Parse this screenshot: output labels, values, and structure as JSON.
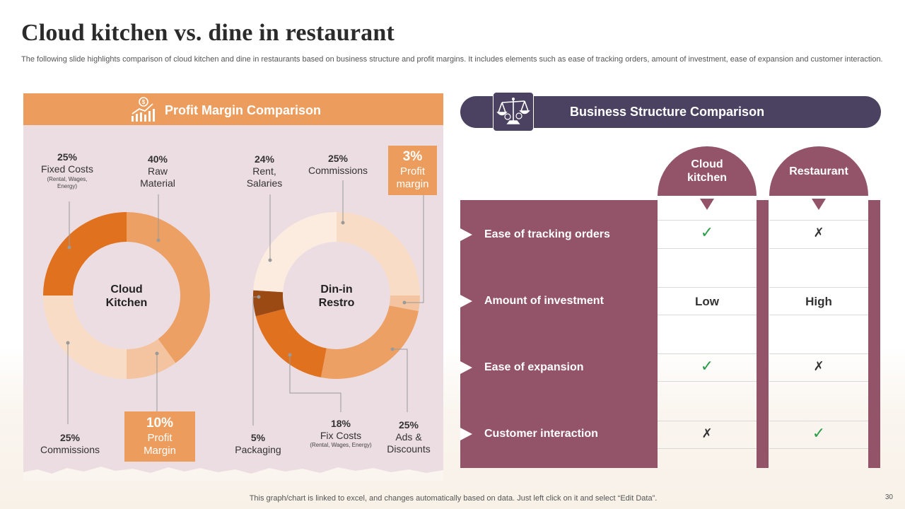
{
  "title": "Cloud kitchen vs. dine in restaurant",
  "subtitle": "The following slide highlights comparison of cloud kitchen and dine in restaurants based on business structure and profit margins. It includes elements such as ease of tracking orders, amount of investment, ease of expansion and customer interaction.",
  "footer_note": "This graph/chart is linked to excel, and changes automatically based on data. Just left click on it and select “Edit Data”.",
  "page_number": "30",
  "profit_panel": {
    "header": "Profit Margin Comparison",
    "icon": "money-chart-icon"
  },
  "business_panel": {
    "header": "Business Structure Comparison",
    "icon": "scales-icon",
    "columns": [
      "Cloud kitchen",
      "Restaurant"
    ],
    "rows": [
      {
        "label": "Ease of tracking orders",
        "cloud": "✓",
        "restaurant": "✗"
      },
      {
        "label": "Amount of investment",
        "cloud": "Low",
        "restaurant": "High"
      },
      {
        "label": "Ease of expansion",
        "cloud": "✓",
        "restaurant": "✗"
      },
      {
        "label": "Customer interaction",
        "cloud": "✗",
        "restaurant": "✓"
      }
    ]
  },
  "colors": {
    "orange": "#ec9d5d",
    "maroon": "#935368",
    "navy": "#4a4260",
    "panel_bg": "#ecdde2",
    "check": "#2a9d4a"
  },
  "chart_data": [
    {
      "type": "pie",
      "title": "Cloud Kitchen",
      "center_label": [
        "Cloud",
        "Kitchen"
      ],
      "slices": [
        {
          "label": "Raw Material",
          "value": 40,
          "pct": "40%",
          "name_lines": [
            "Raw",
            "Material"
          ],
          "color": "#eca063"
        },
        {
          "label": "Profit Margin",
          "value": 10,
          "pct": "10%",
          "name_lines": [
            "Profit",
            "Margin"
          ],
          "color": "#f3c49f"
        },
        {
          "label": "Commissions",
          "value": 25,
          "pct": "25%",
          "name_lines": [
            "Commissions"
          ],
          "color": "#f8dcc5"
        },
        {
          "label": "Fixed Costs",
          "value": 25,
          "pct": "25%",
          "name_lines": [
            "Fixed Costs"
          ],
          "note": "(Rental, Wages, Energy)",
          "note_lines": [
            "(Rental, Wages,",
            "Energy)"
          ],
          "color": "#e0711f"
        }
      ]
    },
    {
      "type": "pie",
      "title": "Din-in Restro",
      "center_label": [
        "Din-in",
        "Restro"
      ],
      "slices": [
        {
          "label": "Commissions",
          "value": 25,
          "pct": "25%",
          "name_lines": [
            "Commissions"
          ],
          "color": "#f8dcc5"
        },
        {
          "label": "Profit margin",
          "value": 3,
          "pct": "3%",
          "name_lines": [
            "Profit",
            "margin"
          ],
          "color": "#f3c49f"
        },
        {
          "label": "Ads & Discounts",
          "value": 25,
          "pct": "25%",
          "name_lines": [
            "Ads &",
            "Discounts"
          ],
          "color": "#eca063"
        },
        {
          "label": "Fix Costs",
          "value": 18,
          "pct": "18%",
          "name_lines": [
            "Fix Costs"
          ],
          "note": "(Rental, Wages, Energy)",
          "note_lines": [
            "(Rental, Wages, Energy)"
          ],
          "color": "#e0711f"
        },
        {
          "label": "Packaging",
          "value": 5,
          "pct": "5%",
          "name_lines": [
            "Packaging"
          ],
          "color": "#9c4a14"
        },
        {
          "label": "Rent, Salaries",
          "value": 24,
          "pct": "24%",
          "name_lines": [
            "Rent,",
            "Salaries"
          ],
          "color": "#fcebdf"
        }
      ]
    }
  ]
}
